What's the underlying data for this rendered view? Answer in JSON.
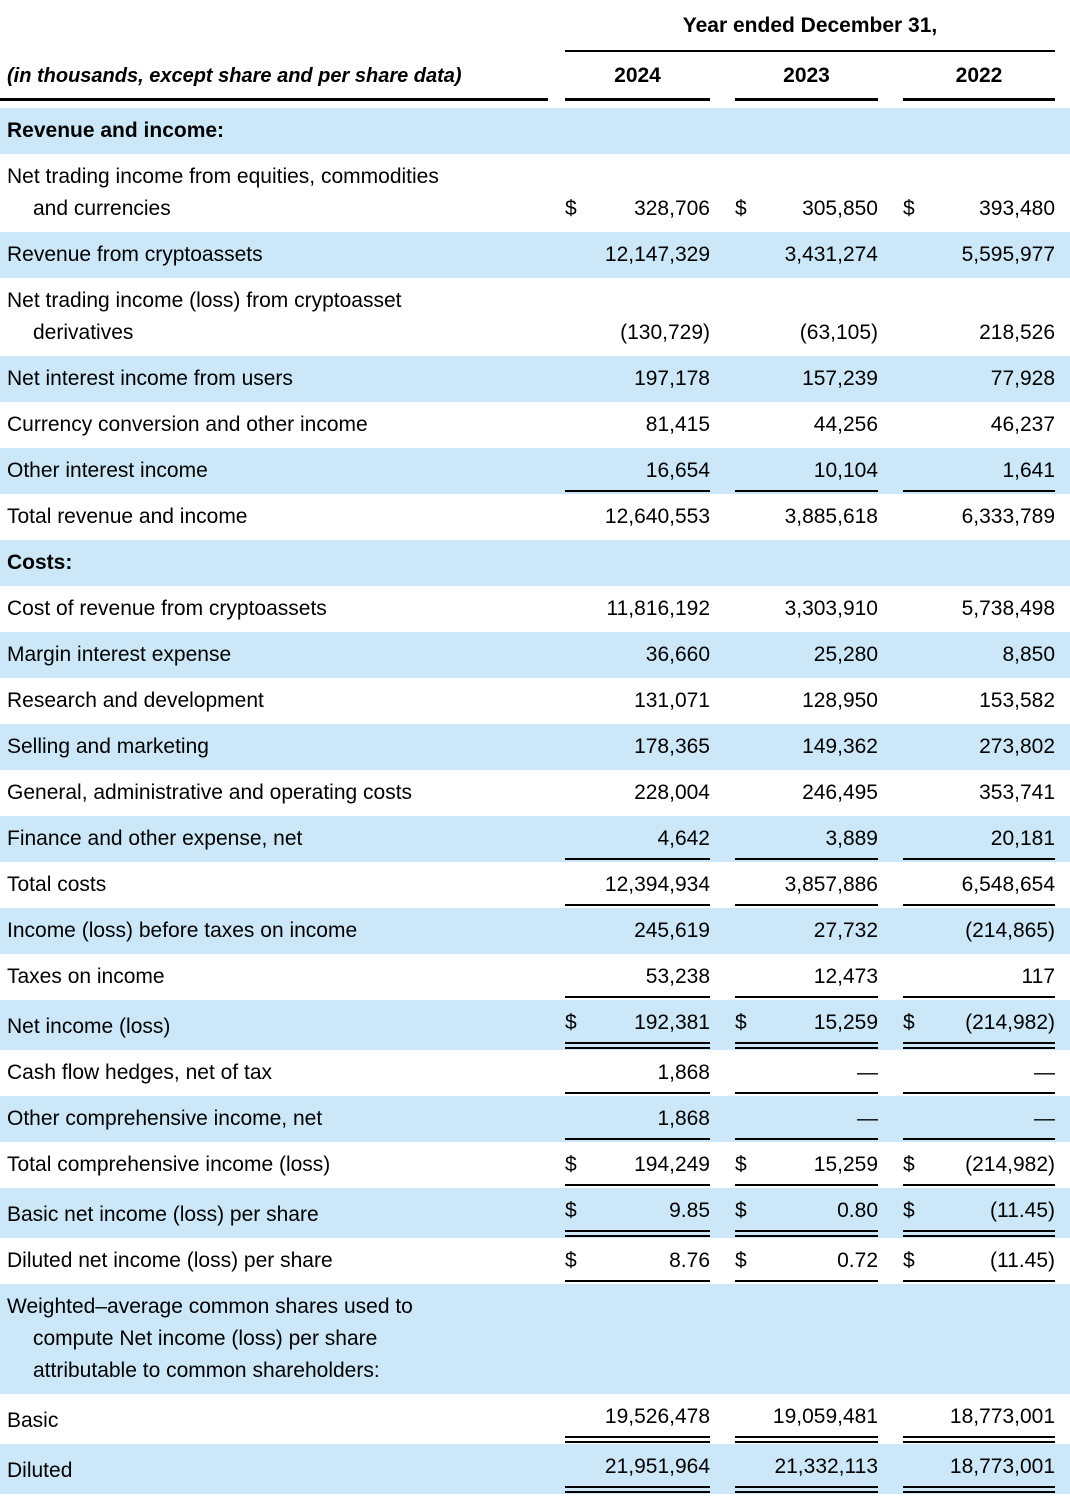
{
  "table": {
    "period_header": "Year ended December 31,",
    "caption": "(in thousands, except share and per share data)",
    "years": [
      "2024",
      "2023",
      "2022"
    ],
    "colors": {
      "stripe_blue": "#cbe7f8",
      "text": "#000000",
      "rule": "#000000"
    },
    "rows": [
      {
        "label": "Revenue and income:",
        "bold": true,
        "shade": true,
        "values": null,
        "dollar": false,
        "rule": "none"
      },
      {
        "label": "Net trading income from equities, commodities\nand currencies",
        "bold": false,
        "shade": false,
        "values": [
          "328,706",
          "305,850",
          "393,480"
        ],
        "dollar": true,
        "rule": "none"
      },
      {
        "label": "Revenue from cryptoassets",
        "bold": false,
        "shade": true,
        "values": [
          "12,147,329",
          "3,431,274",
          "5,595,977"
        ],
        "dollar": false,
        "rule": "none"
      },
      {
        "label": "Net trading income (loss) from cryptoasset\nderivatives",
        "bold": false,
        "shade": false,
        "values": [
          "(130,729)",
          "(63,105)",
          "218,526"
        ],
        "dollar": false,
        "rule": "none"
      },
      {
        "label": "Net interest income from users",
        "bold": false,
        "shade": true,
        "values": [
          "197,178",
          "157,239",
          "77,928"
        ],
        "dollar": false,
        "rule": "none"
      },
      {
        "label": "Currency conversion and other income",
        "bold": false,
        "shade": false,
        "values": [
          "81,415",
          "44,256",
          "46,237"
        ],
        "dollar": false,
        "rule": "none"
      },
      {
        "label": "Other interest income",
        "bold": false,
        "shade": true,
        "values": [
          "16,654",
          "10,104",
          "1,641"
        ],
        "dollar": false,
        "rule": "single"
      },
      {
        "label": "Total revenue and income",
        "bold": false,
        "shade": false,
        "values": [
          "12,640,553",
          "3,885,618",
          "6,333,789"
        ],
        "dollar": false,
        "rule": "none"
      },
      {
        "label": "Costs:",
        "bold": true,
        "shade": true,
        "values": null,
        "dollar": false,
        "rule": "none"
      },
      {
        "label": "Cost of revenue from cryptoassets",
        "bold": false,
        "shade": false,
        "values": [
          "11,816,192",
          "3,303,910",
          "5,738,498"
        ],
        "dollar": false,
        "rule": "none"
      },
      {
        "label": "Margin interest expense",
        "bold": false,
        "shade": true,
        "values": [
          "36,660",
          "25,280",
          "8,850"
        ],
        "dollar": false,
        "rule": "none"
      },
      {
        "label": "Research and development",
        "bold": false,
        "shade": false,
        "values": [
          "131,071",
          "128,950",
          "153,582"
        ],
        "dollar": false,
        "rule": "none"
      },
      {
        "label": "Selling and marketing",
        "bold": false,
        "shade": true,
        "values": [
          "178,365",
          "149,362",
          "273,802"
        ],
        "dollar": false,
        "rule": "none"
      },
      {
        "label": "General, administrative and operating costs",
        "bold": false,
        "shade": false,
        "values": [
          "228,004",
          "246,495",
          "353,741"
        ],
        "dollar": false,
        "rule": "none"
      },
      {
        "label": "Finance and other expense, net",
        "bold": false,
        "shade": true,
        "values": [
          "4,642",
          "3,889",
          "20,181"
        ],
        "dollar": false,
        "rule": "single"
      },
      {
        "label": "Total costs",
        "bold": false,
        "shade": false,
        "values": [
          "12,394,934",
          "3,857,886",
          "6,548,654"
        ],
        "dollar": false,
        "rule": "single"
      },
      {
        "label": "Income (loss) before taxes on income",
        "bold": false,
        "shade": true,
        "values": [
          "245,619",
          "27,732",
          "(214,865)"
        ],
        "dollar": false,
        "rule": "none"
      },
      {
        "label": "Taxes on income",
        "bold": false,
        "shade": false,
        "values": [
          "53,238",
          "12,473",
          "117"
        ],
        "dollar": false,
        "rule": "single"
      },
      {
        "label": "Net income (loss)",
        "bold": false,
        "shade": true,
        "values": [
          "192,381",
          "15,259",
          "(214,982)"
        ],
        "dollar": true,
        "rule": "double"
      },
      {
        "label": "Cash flow hedges, net of tax",
        "bold": false,
        "shade": false,
        "values": [
          "1,868",
          "—",
          "—"
        ],
        "dollar": false,
        "rule": "single"
      },
      {
        "label": "Other comprehensive income, net",
        "bold": false,
        "shade": true,
        "values": [
          "1,868",
          "—",
          "—"
        ],
        "dollar": false,
        "rule": "single"
      },
      {
        "label": "Total comprehensive income (loss)",
        "bold": false,
        "shade": false,
        "values": [
          "194,249",
          "15,259",
          "(214,982)"
        ],
        "dollar": true,
        "rule": "single"
      },
      {
        "label": "Basic net income (loss) per share",
        "bold": false,
        "shade": true,
        "values": [
          "9.85",
          "0.80",
          "(11.45)"
        ],
        "dollar": true,
        "rule": "double"
      },
      {
        "label": "Diluted net income (loss) per share",
        "bold": false,
        "shade": false,
        "values": [
          "8.76",
          "0.72",
          "(11.45)"
        ],
        "dollar": true,
        "rule": "single"
      },
      {
        "label": "Weighted–average common shares used to\ncompute Net income (loss) per share\nattributable to common shareholders:",
        "bold": false,
        "shade": true,
        "values": null,
        "dollar": false,
        "rule": "none"
      },
      {
        "label": "Basic",
        "bold": false,
        "shade": false,
        "values": [
          "19,526,478",
          "19,059,481",
          "18,773,001"
        ],
        "dollar": false,
        "rule": "double"
      },
      {
        "label": "Diluted",
        "bold": false,
        "shade": true,
        "values": [
          "21,951,964",
          "21,332,113",
          "18,773,001"
        ],
        "dollar": false,
        "rule": "double"
      }
    ]
  }
}
